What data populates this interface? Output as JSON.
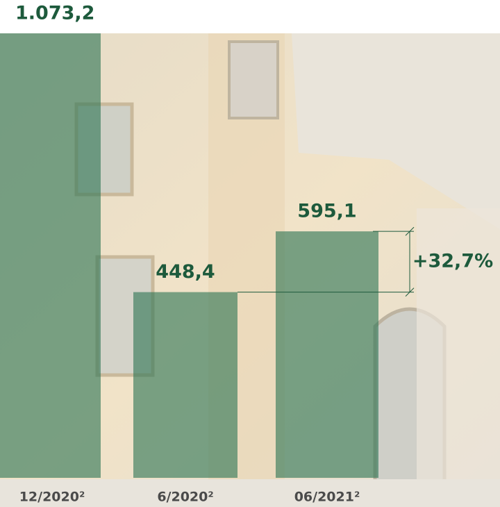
{
  "chart_data": {
    "type": "bar",
    "categories": [
      "12/2020²",
      "6/2020²",
      "06/2021²"
    ],
    "values": [
      1073.2,
      448.4,
      595.1
    ],
    "value_labels": [
      "1.073,2",
      "448,4",
      "595,1"
    ],
    "annotation": "+32,7%",
    "color": "#2f7656",
    "ylim": [
      0,
      1073.2
    ]
  }
}
